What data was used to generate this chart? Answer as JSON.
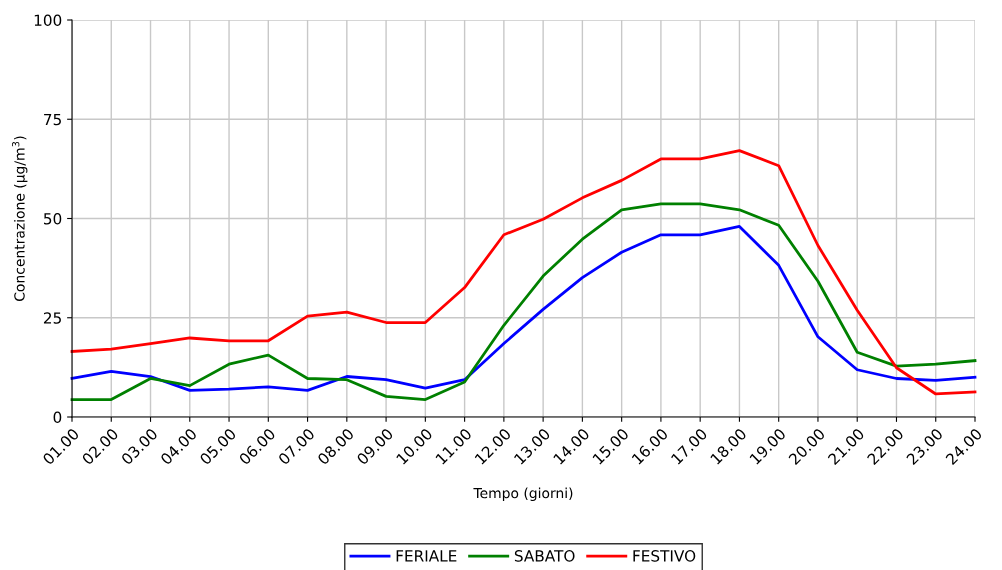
{
  "chart_data": {
    "type": "line",
    "xlabel": "Tempo (giorni)",
    "ylabel": "Concentrazione (µg/m$^{3}$)",
    "categories": [
      "01.00",
      "02.00",
      "03.00",
      "04.00",
      "05.00",
      "06.00",
      "07.00",
      "08.00",
      "09.00",
      "10.00",
      "11.00",
      "12.00",
      "13.00",
      "14.00",
      "15.00",
      "16.00",
      "17.00",
      "18.00",
      "19.00",
      "20.00",
      "21.00",
      "22.00",
      "23.00",
      "24.00"
    ],
    "series": [
      {
        "name": "FERIALE",
        "color": "#0000ff",
        "values": [
          9.7,
          11.5,
          10.2,
          6.7,
          7.0,
          7.6,
          6.7,
          10.2,
          9.4,
          7.3,
          9.4,
          18.5,
          27.1,
          35.1,
          41.5,
          45.9,
          45.9,
          48.0,
          38.2,
          20.2,
          11.9,
          9.7,
          9.2,
          10.0
        ]
      },
      {
        "name": "SABATO",
        "color": "#008000",
        "values": [
          4.4,
          4.4,
          9.7,
          7.9,
          13.3,
          15.6,
          9.7,
          9.4,
          5.2,
          4.4,
          8.8,
          23.1,
          35.5,
          44.8,
          52.2,
          53.7,
          53.7,
          52.2,
          48.3,
          34.2,
          16.3,
          12.8,
          13.3,
          14.2
        ]
      },
      {
        "name": "FESTIVO",
        "color": "#ff0000",
        "values": [
          16.5,
          17.1,
          18.5,
          19.9,
          19.2,
          19.2,
          25.4,
          26.4,
          23.8,
          23.8,
          32.6,
          45.9,
          49.8,
          55.2,
          59.6,
          65.0,
          65.0,
          67.1,
          63.3,
          43.2,
          26.9,
          12.4,
          5.8,
          6.3
        ]
      }
    ],
    "ylim": [
      0,
      100
    ],
    "yticks": [
      0,
      25,
      50,
      75,
      100
    ],
    "grid": true,
    "legend": "bottom",
    "marker": "none",
    "line_style": "solid"
  }
}
